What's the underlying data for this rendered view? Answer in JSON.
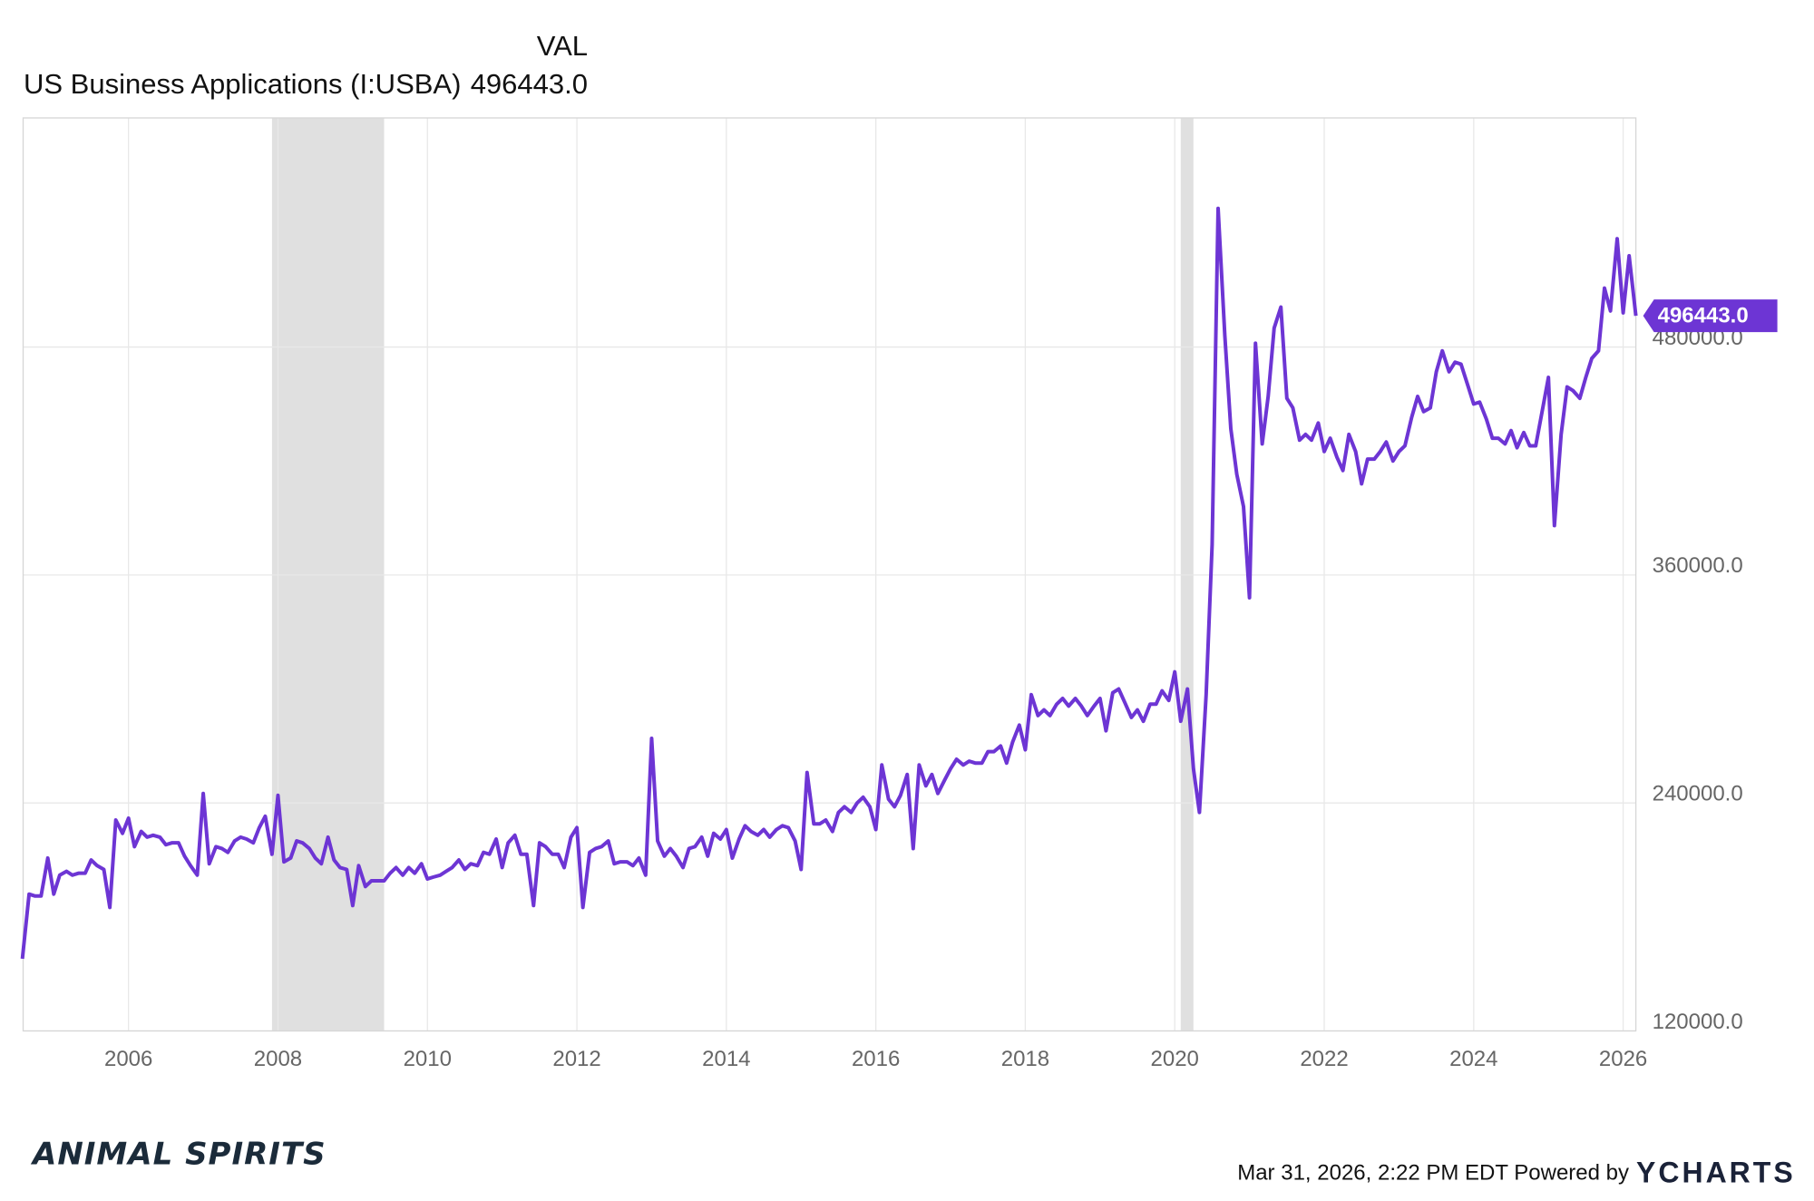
{
  "chart_data": {
    "type": "line",
    "column_header": "VAL",
    "last_label": "496443.0",
    "footer": "Mar 31, 2026, 2:22 PM EDT Powered by",
    "brand": "YCHARTS",
    "logo": "ANIMAL SPIRITS",
    "xlim": [
      2004.59,
      2026.17
    ],
    "xticks": [
      2006,
      2008,
      2010,
      2012,
      2014,
      2016,
      2018,
      2020,
      2022,
      2024,
      2026
    ],
    "ylim": [
      120000,
      600600
    ],
    "yticks": [
      {
        "value": 120000,
        "label": "120000.0"
      },
      {
        "value": 240000,
        "label": "240000.0"
      },
      {
        "value": 360000,
        "label": "360000.0"
      },
      {
        "value": 480000,
        "label": "480000.0"
      }
    ],
    "grid": true,
    "shaded_periods": [
      [
        2007.92,
        2009.42
      ],
      [
        2020.08,
        2020.25
      ]
    ],
    "shade_color": "#e0e0e0",
    "x": [
      2004.58,
      2004.67,
      2004.75,
      2004.83,
      2004.92,
      2005.0,
      2005.08,
      2005.17,
      2005.25,
      2005.33,
      2005.42,
      2005.5,
      2005.58,
      2005.67,
      2005.75,
      2005.83,
      2005.92,
      2006.0,
      2006.08,
      2006.17,
      2006.25,
      2006.33,
      2006.42,
      2006.5,
      2006.58,
      2006.67,
      2006.75,
      2006.83,
      2006.92,
      2007.0,
      2007.08,
      2007.17,
      2007.25,
      2007.33,
      2007.42,
      2007.5,
      2007.58,
      2007.67,
      2007.75,
      2007.83,
      2007.92,
      2008.0,
      2008.08,
      2008.17,
      2008.25,
      2008.33,
      2008.42,
      2008.5,
      2008.58,
      2008.67,
      2008.75,
      2008.83,
      2008.92,
      2009.0,
      2009.08,
      2009.17,
      2009.25,
      2009.33,
      2009.42,
      2009.5,
      2009.58,
      2009.67,
      2009.75,
      2009.83,
      2009.92,
      2010.0,
      2010.08,
      2010.17,
      2010.25,
      2010.33,
      2010.42,
      2010.5,
      2010.58,
      2010.67,
      2010.75,
      2010.83,
      2010.92,
      2011.0,
      2011.08,
      2011.17,
      2011.25,
      2011.33,
      2011.42,
      2011.5,
      2011.58,
      2011.67,
      2011.75,
      2011.83,
      2011.92,
      2012.0,
      2012.08,
      2012.17,
      2012.25,
      2012.33,
      2012.42,
      2012.5,
      2012.58,
      2012.67,
      2012.75,
      2012.83,
      2012.92,
      2013.0,
      2013.08,
      2013.17,
      2013.25,
      2013.33,
      2013.42,
      2013.5,
      2013.58,
      2013.67,
      2013.75,
      2013.83,
      2013.92,
      2014.0,
      2014.08,
      2014.17,
      2014.25,
      2014.33,
      2014.42,
      2014.5,
      2014.58,
      2014.67,
      2014.75,
      2014.83,
      2014.92,
      2015.0,
      2015.08,
      2015.17,
      2015.25,
      2015.33,
      2015.42,
      2015.5,
      2015.58,
      2015.67,
      2015.75,
      2015.83,
      2015.92,
      2016.0,
      2016.08,
      2016.17,
      2016.25,
      2016.33,
      2016.42,
      2016.5,
      2016.58,
      2016.67,
      2016.75,
      2016.83,
      2016.92,
      2017.0,
      2017.08,
      2017.17,
      2017.25,
      2017.33,
      2017.42,
      2017.5,
      2017.58,
      2017.67,
      2017.75,
      2017.83,
      2017.92,
      2018.0,
      2018.08,
      2018.17,
      2018.25,
      2018.33,
      2018.42,
      2018.5,
      2018.58,
      2018.67,
      2018.75,
      2018.83,
      2018.92,
      2019.0,
      2019.08,
      2019.17,
      2019.25,
      2019.33,
      2019.42,
      2019.5,
      2019.58,
      2019.67,
      2019.75,
      2019.83,
      2019.92,
      2020.0,
      2020.08,
      2020.17,
      2020.25,
      2020.33,
      2020.42,
      2020.5,
      2020.58,
      2020.67,
      2020.75,
      2020.83,
      2020.92,
      2021.0,
      2021.08,
      2021.17,
      2021.25,
      2021.33,
      2021.42,
      2021.5,
      2021.58,
      2021.67,
      2021.75,
      2021.83,
      2021.92,
      2022.0,
      2022.08,
      2022.17,
      2022.25,
      2022.33,
      2022.42,
      2022.5,
      2022.58,
      2022.67,
      2022.75,
      2022.83,
      2022.92,
      2023.0,
      2023.08,
      2023.17,
      2023.25,
      2023.33,
      2023.42,
      2023.5,
      2023.58,
      2023.67,
      2023.75,
      2023.83,
      2023.92,
      2024.0,
      2024.08,
      2024.17,
      2024.25,
      2024.33,
      2024.42,
      2024.5,
      2024.58,
      2024.67,
      2024.75,
      2024.83,
      2024.92,
      2025.0,
      2025.08,
      2025.17,
      2025.25,
      2025.33,
      2025.42,
      2025.5,
      2025.58,
      2025.67,
      2025.75,
      2025.83,
      2025.92,
      2026.0,
      2026.08,
      2026.17
    ],
    "series": [
      {
        "name": "US Business Applications (I:USBA)",
        "color": "#6d35d4",
        "values": [
          158000,
          192000,
          191000,
          191000,
          211000,
          192000,
          202000,
          204000,
          202000,
          203000,
          203000,
          210000,
          207000,
          205000,
          185000,
          231000,
          224000,
          232000,
          217000,
          225000,
          222000,
          223000,
          222000,
          218000,
          219000,
          219000,
          212000,
          207000,
          202000,
          245000,
          208000,
          217000,
          216000,
          214000,
          220000,
          222000,
          221000,
          219000,
          227000,
          233000,
          213000,
          244000,
          209000,
          211000,
          220000,
          219000,
          216000,
          211000,
          208000,
          222000,
          210000,
          206000,
          205000,
          186000,
          207000,
          196000,
          199000,
          199000,
          199000,
          203000,
          206000,
          202000,
          206000,
          203000,
          208000,
          200000,
          201000,
          202000,
          204000,
          206000,
          210000,
          205000,
          208000,
          207000,
          214000,
          213000,
          221000,
          206000,
          219000,
          223000,
          213000,
          213000,
          186000,
          219000,
          217000,
          213000,
          213000,
          206000,
          222000,
          227000,
          185000,
          214000,
          216000,
          217000,
          220000,
          208000,
          209000,
          209000,
          207000,
          211000,
          202000,
          274000,
          220000,
          212000,
          216000,
          212000,
          206000,
          216000,
          217000,
          222000,
          212000,
          224000,
          221000,
          226000,
          211000,
          221000,
          228000,
          225000,
          223000,
          226000,
          222000,
          226000,
          228000,
          227000,
          220000,
          205000,
          256000,
          229000,
          229000,
          231000,
          225000,
          235000,
          238000,
          235000,
          240000,
          243000,
          238000,
          226000,
          260000,
          242000,
          238000,
          244000,
          255000,
          216000,
          260000,
          249000,
          255000,
          245000,
          252000,
          258000,
          263000,
          260000,
          262000,
          261000,
          261000,
          267000,
          267000,
          270000,
          261000,
          272000,
          281000,
          268000,
          297000,
          286000,
          289000,
          286000,
          292000,
          295000,
          291000,
          295000,
          291000,
          286000,
          291000,
          295000,
          278000,
          298000,
          300000,
          293000,
          285000,
          289000,
          283000,
          292000,
          292000,
          299000,
          294000,
          309000,
          283000,
          300000,
          258000,
          235000,
          297000,
          376000,
          553000,
          486000,
          437000,
          413000,
          396000,
          348000,
          482000,
          429000,
          454000,
          490000,
          501000,
          453000,
          448000,
          431000,
          434000,
          431000,
          440000,
          425000,
          432000,
          422000,
          415000,
          434000,
          425000,
          408000,
          421000,
          421000,
          425000,
          430000,
          420000,
          425000,
          428000,
          443000,
          454000,
          446000,
          448000,
          467000,
          478000,
          467000,
          472000,
          471000,
          460000,
          450000,
          451000,
          442000,
          432000,
          432000,
          429000,
          436000,
          427000,
          435000,
          428000,
          428000,
          447000,
          464000,
          386000,
          434000,
          459000,
          457000,
          453000,
          464000,
          474000,
          478000,
          511000,
          499000,
          537000,
          498000,
          528000,
          496443
        ]
      }
    ]
  }
}
